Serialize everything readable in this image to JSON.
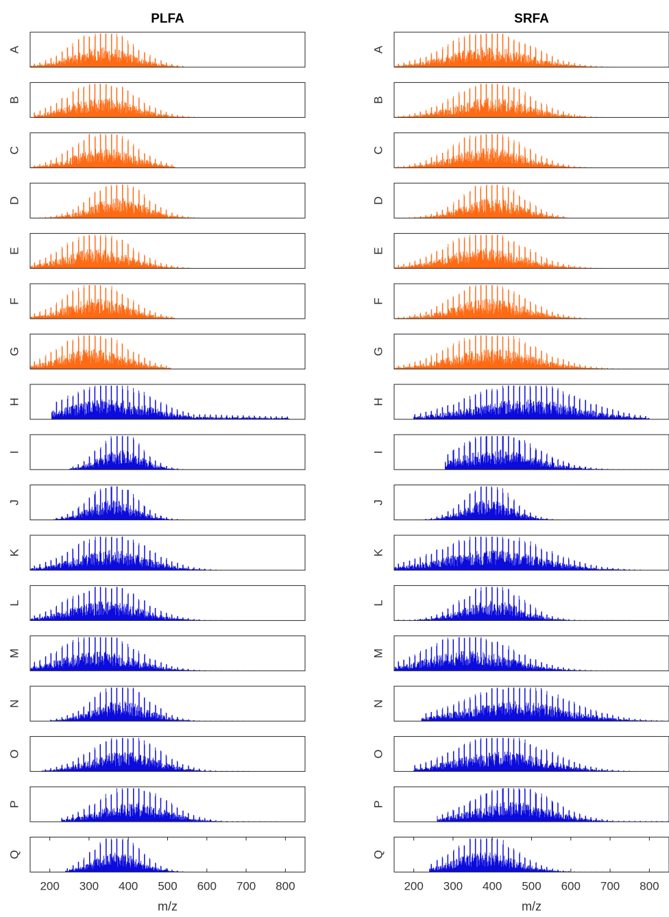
{
  "chart_data": [
    {
      "type": "bar",
      "title": "PLFA",
      "xlabel": "m/z",
      "ylabel": "",
      "xlim": [
        150,
        850
      ],
      "xticks": [
        200,
        300,
        400,
        500,
        600,
        700,
        800
      ],
      "grid": false,
      "legend": "none",
      "colors": {
        "orange": "#ff6a13",
        "blue": "#0b0bdc"
      },
      "series": [
        {
          "name": "A",
          "color": "orange",
          "start": 150,
          "end": 540,
          "center": 335,
          "sigma": 80,
          "tail": 0.004
        },
        {
          "name": "B",
          "color": "orange",
          "start": 160,
          "end": 600,
          "center": 330,
          "sigma": 85,
          "tail": 0.004
        },
        {
          "name": "C",
          "color": "orange",
          "start": 150,
          "end": 520,
          "center": 340,
          "sigma": 78,
          "tail": 0.003
        },
        {
          "name": "D",
          "color": "orange",
          "start": 160,
          "end": 600,
          "center": 375,
          "sigma": 70,
          "tail": 0.004
        },
        {
          "name": "E",
          "color": "orange",
          "start": 150,
          "end": 560,
          "center": 320,
          "sigma": 85,
          "tail": 0.003
        },
        {
          "name": "F",
          "color": "orange",
          "start": 150,
          "end": 520,
          "center": 320,
          "sigma": 80,
          "tail": 0.003
        },
        {
          "name": "G",
          "color": "orange",
          "start": 150,
          "end": 510,
          "center": 310,
          "sigma": 85,
          "tail": 0.003
        },
        {
          "name": "H",
          "color": "blue",
          "start": 205,
          "end": 810,
          "center": 350,
          "sigma": 110,
          "tail": 0.25
        },
        {
          "name": "I",
          "color": "blue",
          "start": 250,
          "end": 620,
          "center": 380,
          "sigma": 55,
          "tail": 0.01
        },
        {
          "name": "J",
          "color": "blue",
          "start": 210,
          "end": 560,
          "center": 360,
          "sigma": 60,
          "tail": 0.01
        },
        {
          "name": "K",
          "color": "blue",
          "start": 150,
          "end": 760,
          "center": 355,
          "sigma": 95,
          "tail": 0.02
        },
        {
          "name": "L",
          "color": "blue",
          "start": 150,
          "end": 750,
          "center": 340,
          "sigma": 90,
          "tail": 0.02
        },
        {
          "name": "M",
          "color": "blue",
          "start": 150,
          "end": 800,
          "center": 320,
          "sigma": 95,
          "tail": 0.02
        },
        {
          "name": "N",
          "color": "blue",
          "start": 200,
          "end": 700,
          "center": 380,
          "sigma": 70,
          "tail": 0.02
        },
        {
          "name": "O",
          "color": "blue",
          "start": 180,
          "end": 710,
          "center": 390,
          "sigma": 85,
          "tail": 0.03
        },
        {
          "name": "P",
          "color": "blue",
          "start": 230,
          "end": 780,
          "center": 410,
          "sigma": 85,
          "tail": 0.03
        },
        {
          "name": "Q",
          "color": "blue",
          "start": 240,
          "end": 620,
          "center": 370,
          "sigma": 60,
          "tail": 0.01
        }
      ]
    },
    {
      "type": "bar",
      "title": "SRFA",
      "xlabel": "m/z",
      "ylabel": "",
      "xlim": [
        150,
        850
      ],
      "xticks": [
        200,
        300,
        400,
        500,
        600,
        700,
        800
      ],
      "grid": false,
      "legend": "none",
      "colors": {
        "orange": "#ff6a13",
        "blue": "#0b0bdc"
      },
      "series": [
        {
          "name": "A",
          "color": "orange",
          "start": 150,
          "end": 770,
          "center": 390,
          "sigma": 105,
          "tail": 0.01
        },
        {
          "name": "B",
          "color": "orange",
          "start": 150,
          "end": 700,
          "center": 400,
          "sigma": 95,
          "tail": 0.01
        },
        {
          "name": "C",
          "color": "orange",
          "start": 150,
          "end": 700,
          "center": 390,
          "sigma": 90,
          "tail": 0.01
        },
        {
          "name": "D",
          "color": "orange",
          "start": 160,
          "end": 590,
          "center": 400,
          "sigma": 75,
          "tail": 0.01
        },
        {
          "name": "E",
          "color": "orange",
          "start": 150,
          "end": 680,
          "center": 380,
          "sigma": 100,
          "tail": 0.01
        },
        {
          "name": "F",
          "color": "orange",
          "start": 150,
          "end": 650,
          "center": 390,
          "sigma": 90,
          "tail": 0.01
        },
        {
          "name": "G",
          "color": "orange",
          "start": 150,
          "end": 850,
          "center": 400,
          "sigma": 110,
          "tail": 0.02
        },
        {
          "name": "H",
          "color": "blue",
          "start": 200,
          "end": 800,
          "center": 480,
          "sigma": 140,
          "tail": 0.01
        },
        {
          "name": "I",
          "color": "blue",
          "start": 280,
          "end": 850,
          "center": 410,
          "sigma": 100,
          "tail": 0.02
        },
        {
          "name": "J",
          "color": "blue",
          "start": 230,
          "end": 630,
          "center": 390,
          "sigma": 60,
          "tail": 0.01
        },
        {
          "name": "K",
          "color": "blue",
          "start": 150,
          "end": 850,
          "center": 400,
          "sigma": 130,
          "tail": 0.02
        },
        {
          "name": "L",
          "color": "blue",
          "start": 150,
          "end": 850,
          "center": 400,
          "sigma": 75,
          "tail": 0.02
        },
        {
          "name": "M",
          "color": "blue",
          "start": 150,
          "end": 850,
          "center": 340,
          "sigma": 110,
          "tail": 0.02
        },
        {
          "name": "N",
          "color": "blue",
          "start": 220,
          "end": 850,
          "center": 460,
          "sigma": 130,
          "tail": 0.02
        },
        {
          "name": "O",
          "color": "blue",
          "start": 200,
          "end": 830,
          "center": 420,
          "sigma": 115,
          "tail": 0.02
        },
        {
          "name": "P",
          "color": "blue",
          "start": 260,
          "end": 850,
          "center": 450,
          "sigma": 100,
          "tail": 0.05
        },
        {
          "name": "Q",
          "color": "blue",
          "start": 240,
          "end": 850,
          "center": 380,
          "sigma": 80,
          "tail": 0.02
        }
      ]
    }
  ]
}
